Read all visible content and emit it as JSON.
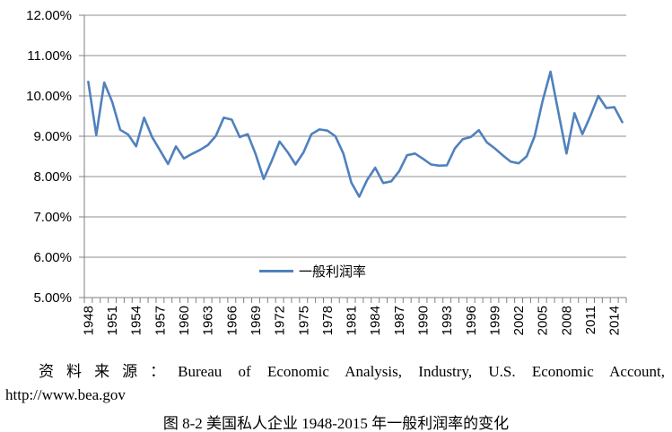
{
  "chart_data": {
    "type": "line",
    "years": [
      1948,
      1949,
      1950,
      1951,
      1952,
      1953,
      1954,
      1955,
      1956,
      1957,
      1958,
      1959,
      1960,
      1961,
      1962,
      1963,
      1964,
      1965,
      1966,
      1967,
      1968,
      1969,
      1970,
      1971,
      1972,
      1973,
      1974,
      1975,
      1976,
      1977,
      1978,
      1979,
      1980,
      1981,
      1982,
      1983,
      1984,
      1985,
      1986,
      1987,
      1988,
      1989,
      1990,
      1991,
      1992,
      1993,
      1994,
      1995,
      1996,
      1997,
      1998,
      1999,
      2000,
      2001,
      2002,
      2003,
      2004,
      2005,
      2006,
      2007,
      2008,
      2009,
      2010,
      2011,
      2012,
      2013,
      2014,
      2015
    ],
    "series": [
      {
        "name": "一般利润率",
        "color": "#4F81BD",
        "values": [
          10.35,
          9.03,
          10.33,
          9.85,
          9.16,
          9.04,
          8.75,
          9.46,
          8.98,
          8.65,
          8.31,
          8.75,
          8.45,
          8.56,
          8.66,
          8.78,
          9.01,
          9.46,
          9.41,
          8.98,
          9.05,
          8.55,
          7.94,
          8.38,
          8.87,
          8.61,
          8.3,
          8.6,
          9.05,
          9.17,
          9.14,
          9.0,
          8.57,
          7.85,
          7.5,
          7.92,
          8.22,
          7.84,
          7.88,
          8.13,
          8.53,
          8.57,
          8.44,
          8.3,
          8.27,
          8.28,
          8.7,
          8.93,
          8.98,
          9.15,
          8.85,
          8.7,
          8.53,
          8.37,
          8.33,
          8.5,
          9.0,
          9.87,
          10.6,
          9.58,
          8.57,
          9.57,
          9.05,
          9.5,
          10.0,
          9.7,
          9.72,
          9.35
        ]
      }
    ],
    "ylim": [
      5,
      12
    ],
    "y_tick_labels": [
      "12.00%",
      "11.00%",
      "10.00%",
      "9.00%",
      "8.00%",
      "7.00%",
      "6.00%",
      "5.00%"
    ],
    "x_tick_labels": [
      1948,
      1951,
      1954,
      1957,
      1960,
      1963,
      1966,
      1969,
      1972,
      1975,
      1978,
      1981,
      1984,
      1987,
      1990,
      1993,
      1996,
      1999,
      2002,
      2005,
      2008,
      2011,
      2014
    ],
    "grid": "horizontal",
    "legend_position": "inside-bottom-center",
    "colors": {
      "line": "#4F81BD",
      "gridline": "#8F8F8F",
      "axis": "#7F7F7F",
      "tick_text": "#000000"
    }
  },
  "legend": {
    "label": "一般利润率"
  },
  "source": {
    "line1": "资料来源：Bureau of Economic Analysis, Industry, U.S. Economic Account,",
    "line2": "http://www.bea.gov"
  },
  "caption": "图 8-2 美国私人企业 1948-2015 年一般利润率的变化"
}
